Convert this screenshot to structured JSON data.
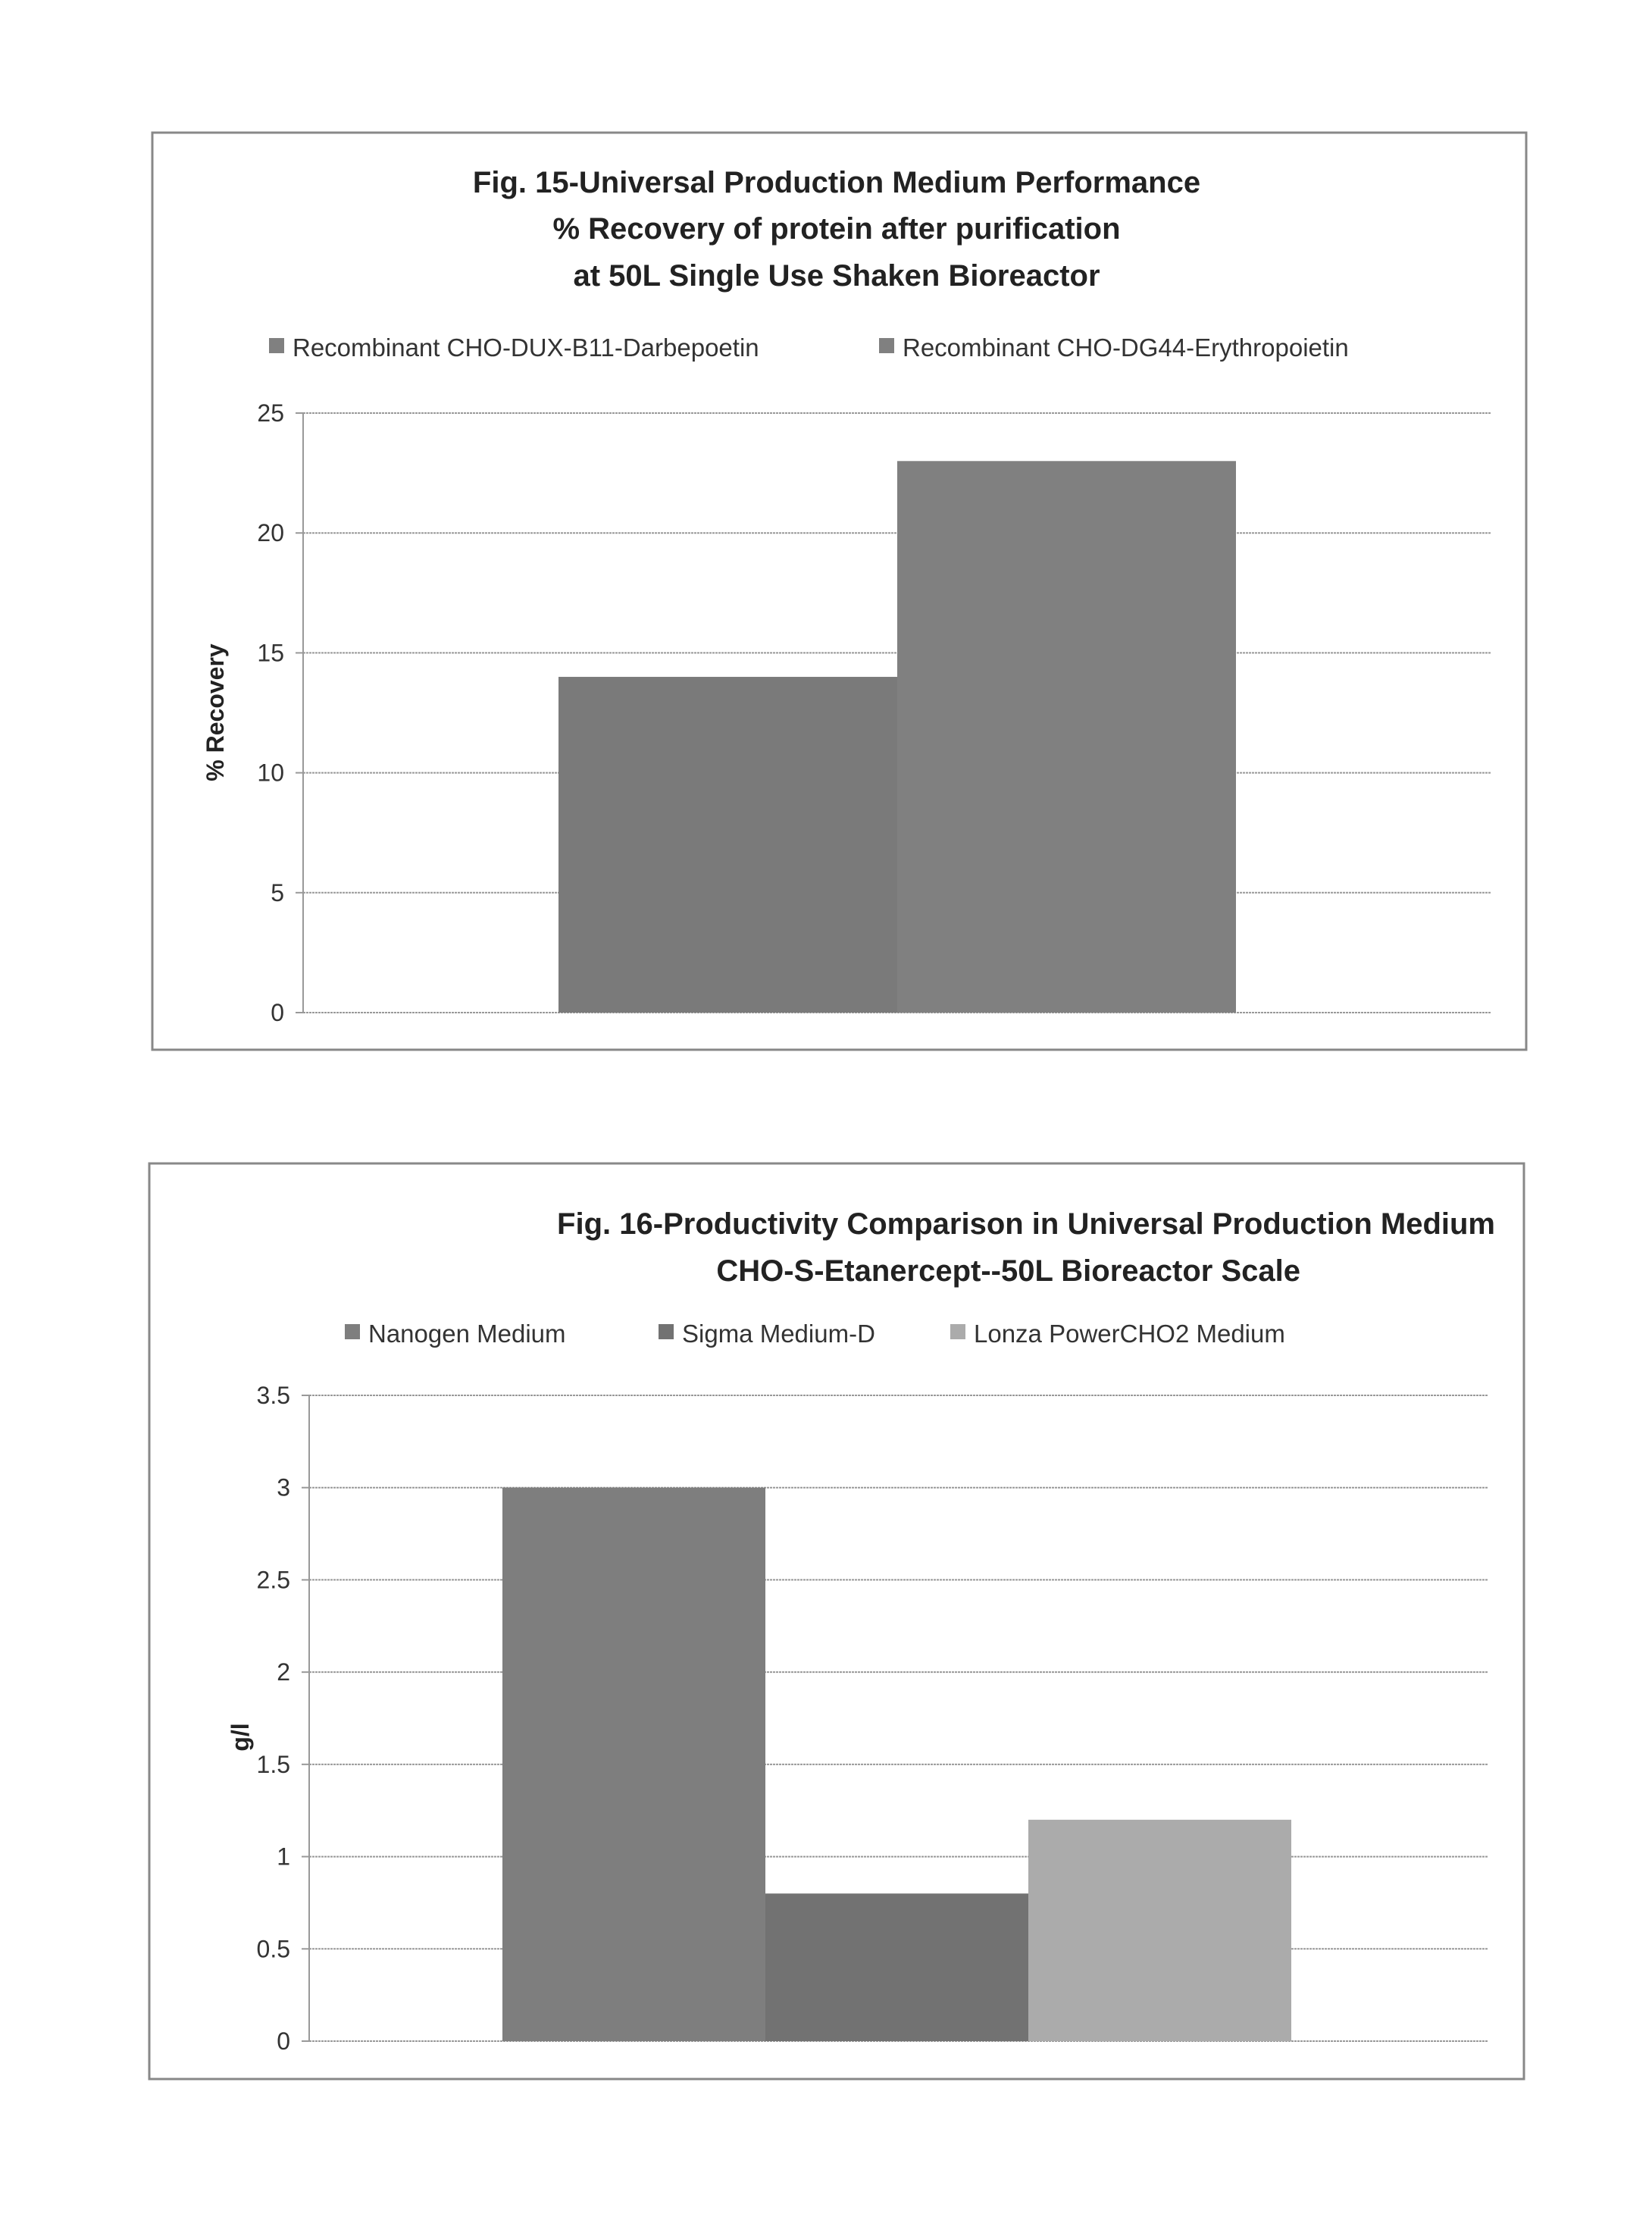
{
  "chart_data": [
    {
      "type": "bar",
      "title": [
        "Fig. 15-Universal Production Medium Performance",
        "% Recovery of protein after purification",
        "at 50L Single Use Shaken Bioreactor"
      ],
      "xlabel": "",
      "ylabel": "% Recovery",
      "ylim": [
        0,
        25
      ],
      "yticks": [
        "0",
        "5",
        "10",
        "15",
        "20",
        "25"
      ],
      "grid": true,
      "legend_position": "top",
      "series": [
        {
          "name": "Recombinant CHO-DUX-B11-Darbepoetin",
          "values": [
            14
          ],
          "color": "#7a7a7a"
        },
        {
          "name": "Recombinant CHO-DG44-Erythropoietin",
          "values": [
            23
          ],
          "color": "#808080"
        }
      ]
    },
    {
      "type": "bar",
      "title": [
        "Fig. 16-Productivity Comparison in Universal Production Medium",
        "CHO-S-Etanercept--50L Bioreactor Scale"
      ],
      "xlabel": "",
      "ylabel": "g/l",
      "ylim": [
        0,
        3.5
      ],
      "yticks": [
        "0",
        "0.5",
        "1",
        "1.5",
        "2",
        "2.5",
        "3",
        "3.5"
      ],
      "grid": true,
      "legend_position": "top",
      "series": [
        {
          "name": "Nanogen Medium",
          "values": [
            3
          ],
          "color": "#7e7e7e"
        },
        {
          "name": "Sigma Medium-D",
          "values": [
            0.8
          ],
          "color": "#727272"
        },
        {
          "name": "Lonza PowerCHO2 Medium",
          "values": [
            1.2
          ],
          "color": "#ababab"
        }
      ]
    }
  ]
}
